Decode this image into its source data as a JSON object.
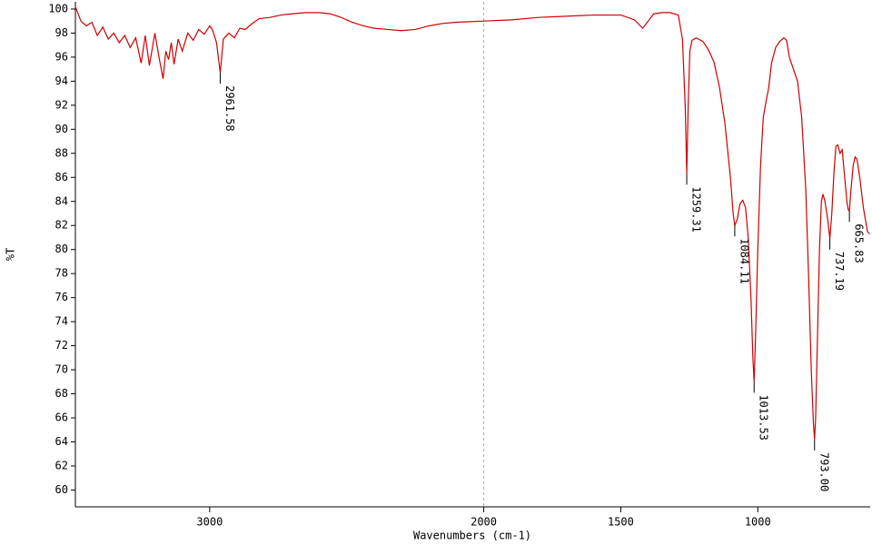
{
  "chart_data": {
    "type": "line",
    "x_label": "Wavenumbers (cm-1)",
    "y_label": "%T",
    "color": "#d00000",
    "xlim": [
      3490,
      590
    ],
    "ylim": [
      58.6,
      100.6
    ],
    "xticks": [
      3000,
      2000,
      1500,
      1000
    ],
    "yticks": [
      60,
      62,
      64,
      66,
      68,
      70,
      72,
      74,
      76,
      78,
      80,
      82,
      84,
      86,
      88,
      90,
      92,
      94,
      96,
      98,
      100
    ],
    "reference_x": 2000,
    "x": [
      3490,
      3470,
      3450,
      3430,
      3410,
      3390,
      3370,
      3350,
      3330,
      3310,
      3290,
      3270,
      3250,
      3235,
      3220,
      3200,
      3185,
      3170,
      3160,
      3150,
      3140,
      3130,
      3115,
      3100,
      3080,
      3060,
      3040,
      3020,
      3000,
      2990,
      2975,
      2961.58,
      2950,
      2930,
      2910,
      2890,
      2870,
      2850,
      2820,
      2780,
      2740,
      2700,
      2650,
      2600,
      2560,
      2520,
      2480,
      2440,
      2400,
      2350,
      2300,
      2250,
      2200,
      2150,
      2100,
      2000,
      1900,
      1800,
      1700,
      1600,
      1500,
      1450,
      1420,
      1400,
      1380,
      1350,
      1320,
      1290,
      1275,
      1265,
      1259.31,
      1254,
      1248,
      1240,
      1225,
      1200,
      1180,
      1160,
      1140,
      1120,
      1100,
      1090,
      1084.11,
      1075,
      1065,
      1055,
      1045,
      1035,
      1025,
      1018,
      1013.53,
      1008,
      1000,
      990,
      980,
      970,
      960,
      950,
      935,
      920,
      905,
      895,
      885,
      870,
      855,
      840,
      825,
      815,
      805,
      797,
      793,
      789,
      783,
      775,
      768,
      762,
      755,
      745,
      737.19,
      730,
      722,
      715,
      708,
      700,
      692,
      685,
      675,
      670,
      665.83,
      660,
      652,
      645,
      638,
      628,
      615,
      600,
      592
    ],
    "values": [
      100.2,
      99.0,
      98.6,
      98.9,
      97.8,
      98.5,
      97.5,
      98.0,
      97.2,
      97.8,
      96.8,
      97.6,
      95.5,
      97.8,
      95.3,
      98.0,
      96.0,
      94.2,
      96.5,
      95.8,
      97.2,
      95.4,
      97.5,
      96.5,
      98.0,
      97.4,
      98.3,
      97.9,
      98.6,
      98.3,
      97.2,
      94.7,
      97.5,
      98.0,
      97.6,
      98.4,
      98.3,
      98.7,
      99.2,
      99.3,
      99.5,
      99.6,
      99.7,
      99.7,
      99.6,
      99.3,
      98.9,
      98.6,
      98.4,
      98.3,
      98.2,
      98.3,
      98.6,
      98.8,
      98.9,
      99.0,
      99.1,
      99.3,
      99.4,
      99.5,
      99.5,
      99.1,
      98.4,
      99.0,
      99.6,
      99.7,
      99.7,
      99.5,
      97.5,
      92.0,
      86.3,
      92.0,
      96.5,
      97.4,
      97.6,
      97.3,
      96.6,
      95.6,
      93.5,
      90.5,
      86.0,
      83.0,
      82.0,
      82.5,
      83.8,
      84.1,
      83.5,
      81.0,
      76.0,
      71.0,
      69.0,
      73.0,
      80.0,
      87.0,
      91.0,
      92.3,
      93.5,
      95.5,
      96.8,
      97.3,
      97.6,
      97.4,
      96.0,
      95.0,
      94.0,
      91.0,
      85.0,
      78.0,
      70.0,
      65.5,
      64.2,
      66.0,
      72.0,
      80.0,
      84.0,
      84.6,
      84.0,
      82.5,
      80.9,
      83.0,
      86.5,
      88.6,
      88.7,
      88.0,
      88.3,
      86.5,
      84.0,
      83.3,
      83.2,
      85.0,
      87.0,
      87.7,
      87.5,
      86.0,
      83.5,
      81.5,
      81.3
    ],
    "annotations": [
      {
        "x": 2961.58,
        "y": 94.7,
        "label": "2961.58"
      },
      {
        "x": 1259.31,
        "y": 86.3,
        "label": "1259.31"
      },
      {
        "x": 1084.11,
        "y": 82.0,
        "label": "1084.11"
      },
      {
        "x": 1013.53,
        "y": 69.0,
        "label": "1013.53"
      },
      {
        "x": 793,
        "y": 64.2,
        "label": "793.00"
      },
      {
        "x": 737.19,
        "y": 80.9,
        "label": "737.19"
      },
      {
        "x": 665.83,
        "y": 83.2,
        "label": "665.83"
      }
    ]
  }
}
